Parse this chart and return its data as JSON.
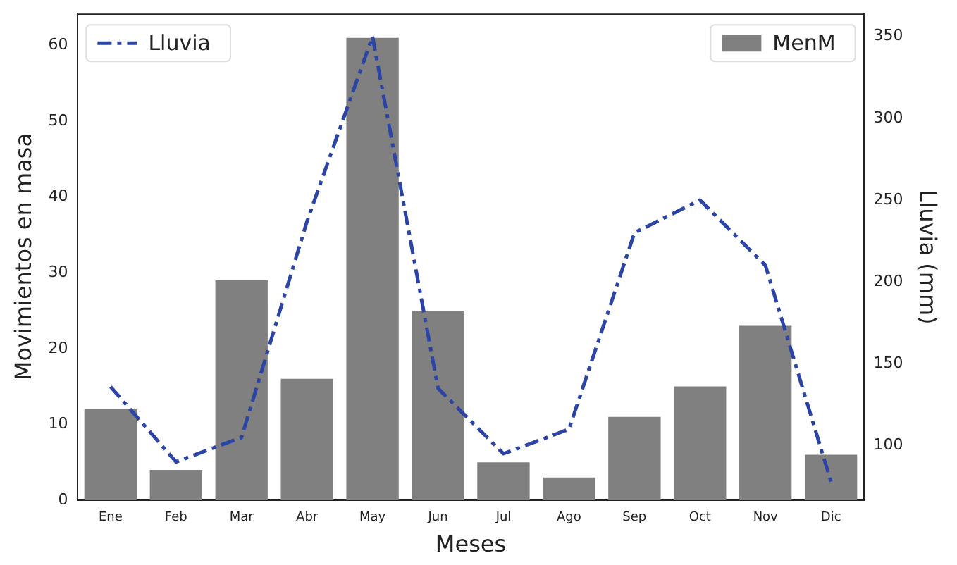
{
  "chart_data": {
    "type": "bar",
    "xlabel": "Meses",
    "ylabel": "Movimientos en masa",
    "y2label": "Lluvia (mm)",
    "categories": [
      "Ene",
      "Feb",
      "Mar",
      "Abr",
      "May",
      "Jun",
      "Jul",
      "Ago",
      "Sep",
      "Oct",
      "Nov",
      "Dic"
    ],
    "series": [
      {
        "name": "Lluvia",
        "type": "line",
        "axis": "y2",
        "color": "#2b44a6",
        "line_style": "dashed",
        "values": [
          136,
          90,
          105,
          237,
          350,
          135,
          95,
          110,
          230,
          250,
          210,
          78
        ]
      },
      {
        "name": "MenM",
        "color": "#808080",
        "values": [
          12,
          4,
          29,
          16,
          61,
          25,
          5,
          3,
          11,
          15,
          23,
          6
        ]
      }
    ],
    "ylim": [
      0,
      64.2
    ],
    "yticks": [
      0,
      10,
      20,
      30,
      40,
      50,
      60
    ],
    "y2lim": [
      66.6,
      364
    ],
    "y2ticks": [
      100,
      150,
      200,
      250,
      300,
      350
    ],
    "grid": false,
    "legend": "top"
  }
}
